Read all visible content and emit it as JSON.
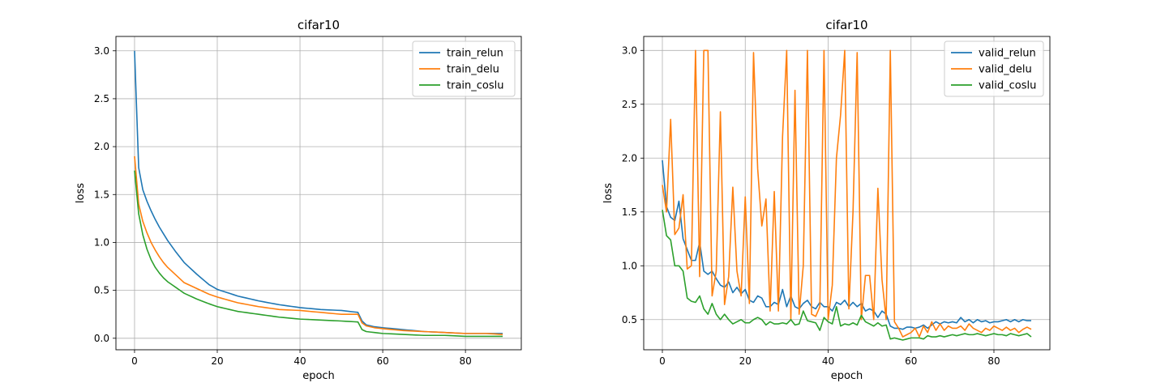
{
  "chart_data": [
    {
      "type": "line",
      "title": "cifar10",
      "xlabel": "epoch",
      "ylabel": "loss",
      "xlim": [
        -4.5,
        93.5
      ],
      "ylim": [
        -0.12,
        3.15
      ],
      "xticks": [
        0,
        20,
        40,
        60,
        80
      ],
      "yticks": [
        0.0,
        0.5,
        1.0,
        1.5,
        2.0,
        2.5,
        3.0
      ],
      "ytick_labels": [
        "0.0",
        "0.5",
        "1.0",
        "1.5",
        "2.0",
        "2.5",
        "3.0"
      ],
      "xtick_labels": [
        "0",
        "20",
        "40",
        "60",
        "80"
      ],
      "grid": true,
      "legend_position": "top-right",
      "series": [
        {
          "name": "train_relun",
          "color": "#1f77b4",
          "anchors": [
            [
              0,
              3.0
            ],
            [
              1,
              1.78
            ],
            [
              2,
              1.55
            ],
            [
              3,
              1.43
            ],
            [
              4,
              1.33
            ],
            [
              5,
              1.24
            ],
            [
              6,
              1.16
            ],
            [
              7,
              1.09
            ],
            [
              8,
              1.02
            ],
            [
              10,
              0.9
            ],
            [
              12,
              0.79
            ],
            [
              15,
              0.67
            ],
            [
              18,
              0.56
            ],
            [
              20,
              0.51
            ],
            [
              25,
              0.44
            ],
            [
              30,
              0.39
            ],
            [
              35,
              0.35
            ],
            [
              40,
              0.32
            ],
            [
              45,
              0.3
            ],
            [
              50,
              0.29
            ],
            [
              54,
              0.27
            ],
            [
              55,
              0.18
            ],
            [
              56,
              0.14
            ],
            [
              58,
              0.12
            ],
            [
              60,
              0.11
            ],
            [
              65,
              0.09
            ],
            [
              70,
              0.07
            ],
            [
              75,
              0.06
            ],
            [
              80,
              0.05
            ],
            [
              85,
              0.05
            ],
            [
              89,
              0.05
            ]
          ]
        },
        {
          "name": "train_delu",
          "color": "#ff7f0e",
          "anchors": [
            [
              0,
              1.9
            ],
            [
              1,
              1.4
            ],
            [
              2,
              1.22
            ],
            [
              3,
              1.1
            ],
            [
              4,
              1.0
            ],
            [
              5,
              0.92
            ],
            [
              6,
              0.85
            ],
            [
              7,
              0.79
            ],
            [
              8,
              0.74
            ],
            [
              10,
              0.66
            ],
            [
              12,
              0.58
            ],
            [
              15,
              0.52
            ],
            [
              18,
              0.46
            ],
            [
              20,
              0.43
            ],
            [
              25,
              0.37
            ],
            [
              30,
              0.33
            ],
            [
              35,
              0.3
            ],
            [
              40,
              0.29
            ],
            [
              45,
              0.27
            ],
            [
              50,
              0.25
            ],
            [
              54,
              0.25
            ],
            [
              55,
              0.16
            ],
            [
              56,
              0.13
            ],
            [
              58,
              0.11
            ],
            [
              60,
              0.1
            ],
            [
              65,
              0.08
            ],
            [
              70,
              0.07
            ],
            [
              75,
              0.06
            ],
            [
              80,
              0.05
            ],
            [
              85,
              0.05
            ],
            [
              89,
              0.04
            ]
          ]
        },
        {
          "name": "train_coslu",
          "color": "#2ca02c",
          "anchors": [
            [
              0,
              1.75
            ],
            [
              1,
              1.3
            ],
            [
              2,
              1.08
            ],
            [
              3,
              0.93
            ],
            [
              4,
              0.82
            ],
            [
              5,
              0.74
            ],
            [
              6,
              0.68
            ],
            [
              7,
              0.63
            ],
            [
              8,
              0.59
            ],
            [
              10,
              0.53
            ],
            [
              12,
              0.47
            ],
            [
              15,
              0.41
            ],
            [
              18,
              0.36
            ],
            [
              20,
              0.33
            ],
            [
              25,
              0.28
            ],
            [
              30,
              0.25
            ],
            [
              35,
              0.22
            ],
            [
              40,
              0.2
            ],
            [
              45,
              0.19
            ],
            [
              50,
              0.18
            ],
            [
              54,
              0.17
            ],
            [
              55,
              0.09
            ],
            [
              56,
              0.07
            ],
            [
              58,
              0.06
            ],
            [
              60,
              0.05
            ],
            [
              65,
              0.04
            ],
            [
              70,
              0.03
            ],
            [
              75,
              0.03
            ],
            [
              80,
              0.02
            ],
            [
              85,
              0.02
            ],
            [
              89,
              0.02
            ]
          ]
        }
      ]
    },
    {
      "type": "line",
      "title": "cifar10",
      "xlabel": "epoch",
      "ylabel": "loss",
      "xlim": [
        -4.5,
        93.5
      ],
      "ylim": [
        0.22,
        3.13
      ],
      "xticks": [
        0,
        20,
        40,
        60,
        80
      ],
      "yticks": [
        0.5,
        1.0,
        1.5,
        2.0,
        2.5,
        3.0
      ],
      "ytick_labels": [
        "0.5",
        "1.0",
        "1.5",
        "2.0",
        "2.5",
        "3.0"
      ],
      "xtick_labels": [
        "0",
        "20",
        "40",
        "60",
        "80"
      ],
      "grid": true,
      "legend_position": "top-right",
      "series": [
        {
          "name": "valid_relun",
          "color": "#1f77b4",
          "values": [
            1.98,
            1.55,
            1.45,
            1.42,
            1.6,
            1.25,
            1.15,
            1.05,
            1.05,
            1.22,
            0.95,
            0.92,
            0.95,
            0.88,
            0.82,
            0.8,
            0.85,
            0.75,
            0.8,
            0.74,
            0.78,
            0.68,
            0.66,
            0.72,
            0.7,
            0.62,
            0.62,
            0.66,
            0.64,
            0.78,
            0.62,
            0.72,
            0.62,
            0.6,
            0.65,
            0.68,
            0.62,
            0.6,
            0.66,
            0.62,
            0.62,
            0.58,
            0.66,
            0.64,
            0.68,
            0.62,
            0.66,
            0.62,
            0.65,
            0.58,
            0.6,
            0.58,
            0.52,
            0.58,
            0.55,
            0.44,
            0.42,
            0.42,
            0.41,
            0.43,
            0.43,
            0.42,
            0.43,
            0.45,
            0.42,
            0.45,
            0.48,
            0.46,
            0.48,
            0.47,
            0.48,
            0.47,
            0.52,
            0.48,
            0.5,
            0.47,
            0.5,
            0.48,
            0.49,
            0.47,
            0.48,
            0.48,
            0.49,
            0.5,
            0.48,
            0.5,
            0.48,
            0.5,
            0.49,
            0.49
          ]
        },
        {
          "name": "valid_delu",
          "color": "#ff7f0e",
          "values": [
            1.75,
            1.5,
            2.36,
            1.29,
            1.35,
            1.66,
            0.97,
            1.0,
            3.0,
            0.9,
            3.0,
            3.0,
            0.72,
            0.95,
            2.43,
            0.64,
            0.9,
            1.73,
            0.95,
            0.72,
            1.64,
            0.65,
            2.98,
            1.9,
            1.37,
            1.62,
            0.58,
            1.69,
            0.58,
            2.2,
            3.0,
            0.5,
            2.63,
            0.55,
            1.0,
            3.0,
            0.55,
            0.53,
            0.62,
            3.0,
            0.5,
            0.82,
            2.0,
            2.4,
            3.0,
            0.6,
            1.5,
            2.98,
            0.5,
            0.91,
            0.91,
            0.5,
            1.72,
            0.87,
            0.5,
            3.0,
            0.48,
            0.42,
            0.34,
            0.36,
            0.38,
            0.42,
            0.34,
            0.44,
            0.38,
            0.48,
            0.4,
            0.46,
            0.4,
            0.44,
            0.42,
            0.42,
            0.44,
            0.4,
            0.46,
            0.42,
            0.4,
            0.38,
            0.42,
            0.4,
            0.44,
            0.42,
            0.4,
            0.43,
            0.4,
            0.42,
            0.38,
            0.41,
            0.43,
            0.41
          ]
        },
        {
          "name": "valid_coslu",
          "color": "#2ca02c",
          "values": [
            1.52,
            1.28,
            1.24,
            1.0,
            1.0,
            0.95,
            0.7,
            0.67,
            0.66,
            0.72,
            0.6,
            0.55,
            0.65,
            0.55,
            0.5,
            0.55,
            0.5,
            0.46,
            0.48,
            0.5,
            0.47,
            0.47,
            0.5,
            0.52,
            0.5,
            0.45,
            0.48,
            0.46,
            0.46,
            0.47,
            0.46,
            0.5,
            0.45,
            0.46,
            0.58,
            0.49,
            0.48,
            0.47,
            0.4,
            0.52,
            0.48,
            0.46,
            0.62,
            0.44,
            0.46,
            0.45,
            0.47,
            0.45,
            0.54,
            0.48,
            0.46,
            0.44,
            0.47,
            0.44,
            0.45,
            0.32,
            0.33,
            0.32,
            0.31,
            0.32,
            0.33,
            0.33,
            0.33,
            0.32,
            0.35,
            0.34,
            0.34,
            0.35,
            0.34,
            0.35,
            0.36,
            0.35,
            0.36,
            0.37,
            0.36,
            0.36,
            0.37,
            0.36,
            0.35,
            0.36,
            0.37,
            0.36,
            0.36,
            0.35,
            0.37,
            0.36,
            0.35,
            0.36,
            0.37,
            0.34
          ]
        }
      ]
    }
  ]
}
